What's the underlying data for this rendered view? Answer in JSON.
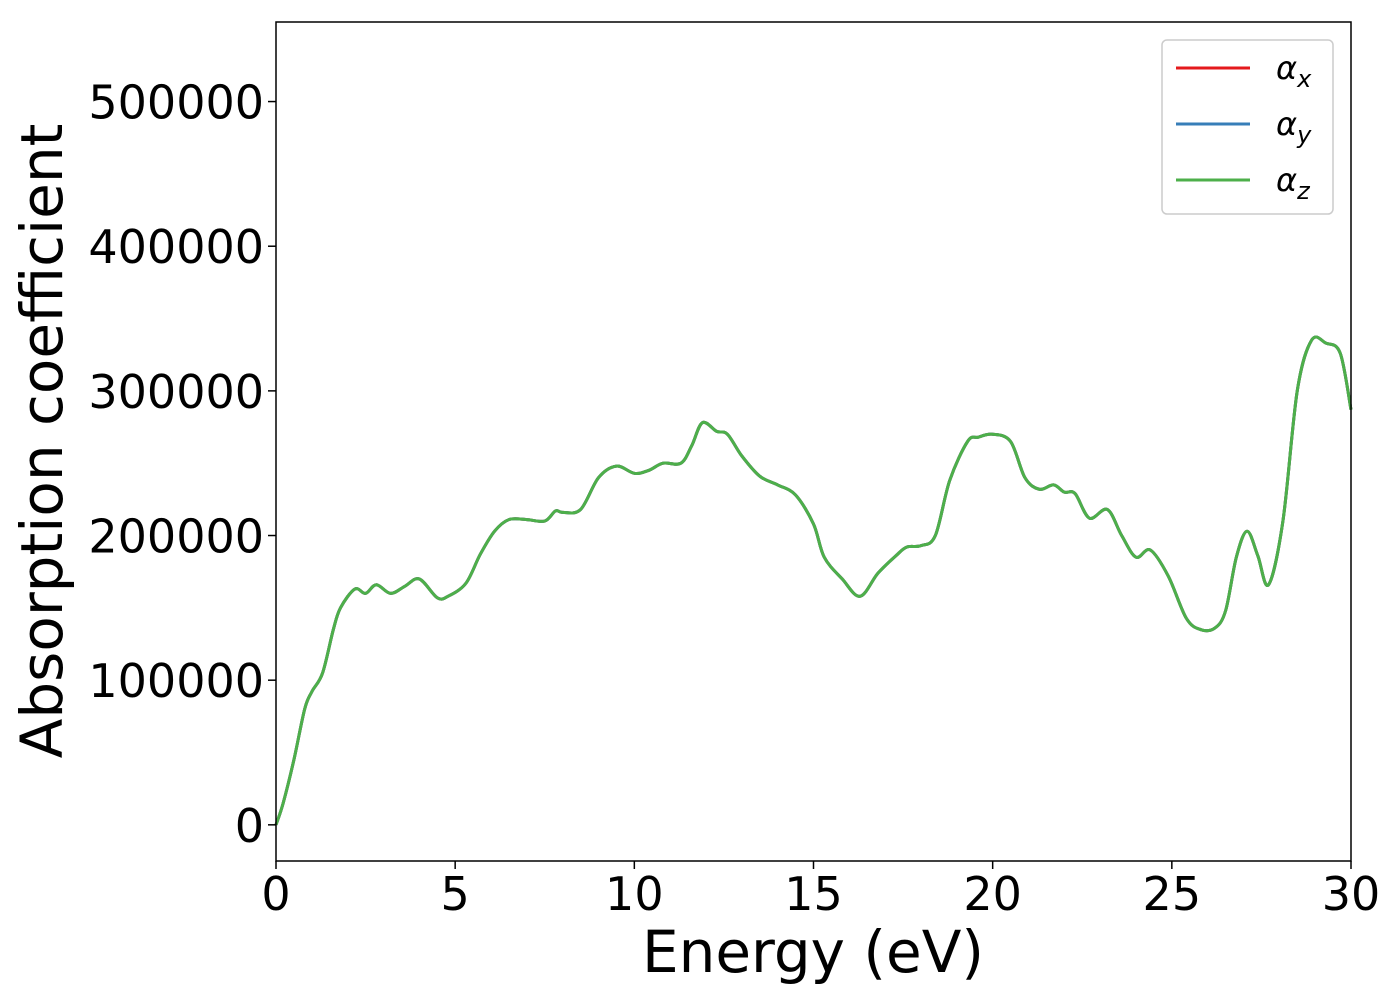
{
  "chart_data": {
    "type": "line",
    "title": "",
    "xlabel": "Energy (eV)",
    "ylabel": "Absorption coefficient",
    "xlim": [
      0,
      30
    ],
    "ylim": [
      -25000,
      555000
    ],
    "xticks": [
      0,
      5,
      10,
      15,
      20,
      25,
      30
    ],
    "yticks": [
      0,
      100000,
      200000,
      300000,
      400000,
      500000
    ],
    "grid": false,
    "legend_position": "top-right",
    "x": [
      0,
      0.2,
      0.5,
      0.8,
      1.0,
      1.3,
      1.6,
      1.8,
      2.2,
      2.5,
      2.8,
      3.2,
      3.6,
      4.0,
      4.5,
      4.8,
      5.3,
      5.7,
      6.1,
      6.5,
      7.0,
      7.5,
      7.8,
      8.0,
      8.5,
      9.0,
      9.5,
      10.0,
      10.4,
      10.8,
      11.3,
      11.6,
      11.9,
      12.3,
      12.6,
      13.0,
      13.5,
      14.0,
      14.5,
      15.0,
      15.3,
      15.8,
      16.3,
      16.8,
      17.3,
      17.6,
      18.0,
      18.4,
      18.8,
      19.3,
      19.6,
      20.0,
      20.5,
      20.9,
      21.3,
      21.7,
      22.0,
      22.3,
      22.7,
      23.2,
      23.6,
      24.0,
      24.4,
      24.9,
      25.4,
      25.8,
      26.2,
      26.5,
      26.8,
      27.1,
      27.4,
      27.7,
      28.1,
      28.5,
      28.9,
      29.3,
      29.7,
      30.0
    ],
    "series": [
      {
        "name": "α_x",
        "color": "#e41a1c",
        "values": [
          0,
          15000,
          45000,
          80000,
          92000,
          105000,
          135000,
          150000,
          163000,
          160000,
          166000,
          160000,
          165000,
          170000,
          157000,
          158000,
          167000,
          187000,
          203000,
          211000,
          211000,
          210000,
          217000,
          216000,
          218000,
          240000,
          248000,
          243000,
          245000,
          250000,
          250000,
          262000,
          278000,
          272000,
          270000,
          255000,
          241000,
          235000,
          228000,
          208000,
          185000,
          170000,
          158000,
          174000,
          186000,
          192000,
          193000,
          200000,
          238000,
          265000,
          268000,
          270000,
          265000,
          240000,
          232000,
          235000,
          230000,
          229000,
          212000,
          218000,
          200000,
          185000,
          190000,
          172000,
          143000,
          135000,
          136000,
          148000,
          185000,
          203000,
          186000,
          166000,
          210000,
          300000,
          335000,
          333000,
          326000,
          287000
        ]
      },
      {
        "name": "α_y",
        "color": "#377eb8",
        "values": [
          0,
          15000,
          45000,
          80000,
          92000,
          105000,
          135000,
          150000,
          163000,
          160000,
          166000,
          160000,
          165000,
          170000,
          157000,
          158000,
          167000,
          187000,
          203000,
          211000,
          211000,
          210000,
          217000,
          216000,
          218000,
          240000,
          248000,
          243000,
          245000,
          250000,
          250000,
          262000,
          278000,
          272000,
          270000,
          255000,
          241000,
          235000,
          228000,
          208000,
          185000,
          170000,
          158000,
          174000,
          186000,
          192000,
          193000,
          200000,
          238000,
          265000,
          268000,
          270000,
          265000,
          240000,
          232000,
          235000,
          230000,
          229000,
          212000,
          218000,
          200000,
          185000,
          190000,
          172000,
          143000,
          135000,
          136000,
          148000,
          185000,
          203000,
          186000,
          166000,
          210000,
          300000,
          335000,
          333000,
          326000,
          287000
        ]
      },
      {
        "name": "α_z",
        "color": "#4daf4a",
        "values": [
          0,
          15000,
          45000,
          80000,
          92000,
          105000,
          135000,
          150000,
          163000,
          160000,
          166000,
          160000,
          165000,
          170000,
          157000,
          158000,
          167000,
          187000,
          203000,
          211000,
          211000,
          210000,
          217000,
          216000,
          218000,
          240000,
          248000,
          243000,
          245000,
          250000,
          250000,
          262000,
          278000,
          272000,
          270000,
          255000,
          241000,
          235000,
          228000,
          208000,
          185000,
          170000,
          158000,
          174000,
          186000,
          192000,
          193000,
          200000,
          238000,
          265000,
          268000,
          270000,
          265000,
          240000,
          232000,
          235000,
          230000,
          229000,
          212000,
          218000,
          200000,
          185000,
          190000,
          172000,
          143000,
          135000,
          136000,
          148000,
          185000,
          203000,
          186000,
          166000,
          210000,
          300000,
          335000,
          333000,
          326000,
          287000
        ]
      }
    ]
  }
}
